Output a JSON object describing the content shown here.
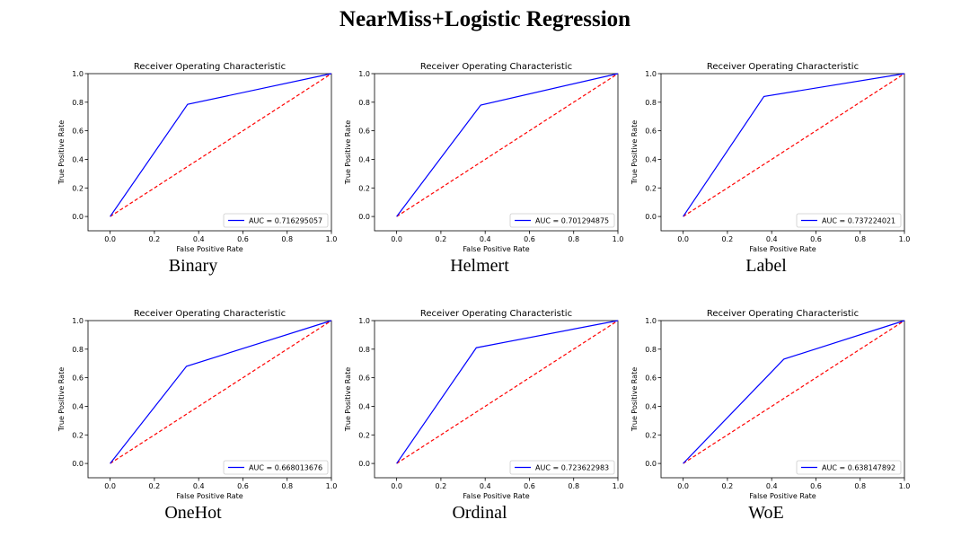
{
  "figure": {
    "title": "NearMiss+Logistic Regression"
  },
  "chart_data": [
    {
      "type": "line",
      "caption": "Binary",
      "title": "Receiver Operating Characteristic",
      "xlabel": "False Positive Rate",
      "ylabel": "True Positive Rate",
      "xlim": [
        -0.1,
        1.0
      ],
      "ylim": [
        -0.1,
        1.0
      ],
      "xticks": [
        "0.0",
        "0.2",
        "0.4",
        "0.6",
        "0.8",
        "1.0"
      ],
      "yticks": [
        "0.0",
        "0.2",
        "0.4",
        "0.6",
        "0.8",
        "1.0"
      ],
      "legend_loc": "lower right",
      "series": [
        {
          "name": "AUC = 0.716295057",
          "color": "#0000ff",
          "style": "solid",
          "x": [
            0.0,
            0.35,
            1.0
          ],
          "y": [
            0.0,
            0.785,
            1.0
          ]
        },
        {
          "color": "#ff0000",
          "style": "dashed",
          "x": [
            0.0,
            1.0
          ],
          "y": [
            0.0,
            1.0
          ]
        }
      ]
    },
    {
      "type": "line",
      "caption": "Helmert",
      "title": "Receiver Operating Characteristic",
      "xlabel": "False Positive Rate",
      "ylabel": "True Positive Rate",
      "xlim": [
        -0.1,
        1.0
      ],
      "ylim": [
        -0.1,
        1.0
      ],
      "xticks": [
        "0.0",
        "0.2",
        "0.4",
        "0.6",
        "0.8",
        "1.0"
      ],
      "yticks": [
        "0.0",
        "0.2",
        "0.4",
        "0.6",
        "0.8",
        "1.0"
      ],
      "legend_loc": "lower right",
      "series": [
        {
          "name": "AUC = 0.701294875",
          "color": "#0000ff",
          "style": "solid",
          "x": [
            0.0,
            0.38,
            1.0
          ],
          "y": [
            0.0,
            0.78,
            1.0
          ]
        },
        {
          "color": "#ff0000",
          "style": "dashed",
          "x": [
            0.0,
            1.0
          ],
          "y": [
            0.0,
            1.0
          ]
        }
      ]
    },
    {
      "type": "line",
      "caption": "Label",
      "title": "Receiver Operating Characteristic",
      "xlabel": "False Positive Rate",
      "ylabel": "True Positive Rate",
      "xlim": [
        -0.1,
        1.0
      ],
      "ylim": [
        -0.1,
        1.0
      ],
      "xticks": [
        "0.0",
        "0.2",
        "0.4",
        "0.6",
        "0.8",
        "1.0"
      ],
      "yticks": [
        "0.0",
        "0.2",
        "0.4",
        "0.6",
        "0.8",
        "1.0"
      ],
      "legend_loc": "lower right",
      "series": [
        {
          "name": "AUC = 0.737224021",
          "color": "#0000ff",
          "style": "solid",
          "x": [
            0.0,
            0.365,
            1.0
          ],
          "y": [
            0.0,
            0.84,
            1.0
          ]
        },
        {
          "color": "#ff0000",
          "style": "dashed",
          "x": [
            0.0,
            1.0
          ],
          "y": [
            0.0,
            1.0
          ]
        }
      ]
    },
    {
      "type": "line",
      "caption": "OneHot",
      "title": "Receiver Operating Characteristic",
      "xlabel": "False Positive Rate",
      "ylabel": "True Positive Rate",
      "xlim": [
        -0.1,
        1.0
      ],
      "ylim": [
        -0.1,
        1.0
      ],
      "xticks": [
        "0.0",
        "0.2",
        "0.4",
        "0.6",
        "0.8",
        "1.0"
      ],
      "yticks": [
        "0.0",
        "0.2",
        "0.4",
        "0.6",
        "0.8",
        "1.0"
      ],
      "legend_loc": "lower right",
      "series": [
        {
          "name": "AUC = 0.668013676",
          "color": "#0000ff",
          "style": "solid",
          "x": [
            0.0,
            0.345,
            1.0
          ],
          "y": [
            0.0,
            0.68,
            1.0
          ]
        },
        {
          "color": "#ff0000",
          "style": "dashed",
          "x": [
            0.0,
            1.0
          ],
          "y": [
            0.0,
            1.0
          ]
        }
      ]
    },
    {
      "type": "line",
      "caption": "Ordinal",
      "title": "Receiver Operating Characteristic",
      "xlabel": "False Positive Rate",
      "ylabel": "True Positive Rate",
      "xlim": [
        -0.1,
        1.0
      ],
      "ylim": [
        -0.1,
        1.0
      ],
      "xticks": [
        "0.0",
        "0.2",
        "0.4",
        "0.6",
        "0.8",
        "1.0"
      ],
      "yticks": [
        "0.0",
        "0.2",
        "0.4",
        "0.6",
        "0.8",
        "1.0"
      ],
      "legend_loc": "lower right",
      "series": [
        {
          "name": "AUC = 0.723622983",
          "color": "#0000ff",
          "style": "solid",
          "x": [
            0.0,
            0.36,
            1.0
          ],
          "y": [
            0.0,
            0.81,
            1.0
          ]
        },
        {
          "color": "#ff0000",
          "style": "dashed",
          "x": [
            0.0,
            1.0
          ],
          "y": [
            0.0,
            1.0
          ]
        }
      ]
    },
    {
      "type": "line",
      "caption": "WoE",
      "title": "Receiver Operating Characteristic",
      "xlabel": "False Positive Rate",
      "ylabel": "True Positive Rate",
      "xlim": [
        -0.1,
        1.0
      ],
      "ylim": [
        -0.1,
        1.0
      ],
      "xticks": [
        "0.0",
        "0.2",
        "0.4",
        "0.6",
        "0.8",
        "1.0"
      ],
      "yticks": [
        "0.0",
        "0.2",
        "0.4",
        "0.6",
        "0.8",
        "1.0"
      ],
      "legend_loc": "lower right",
      "series": [
        {
          "name": "AUC = 0.638147892",
          "color": "#0000ff",
          "style": "solid",
          "x": [
            0.0,
            0.455,
            1.0
          ],
          "y": [
            0.0,
            0.73,
            1.0
          ]
        },
        {
          "color": "#ff0000",
          "style": "dashed",
          "x": [
            0.0,
            1.0
          ],
          "y": [
            0.0,
            1.0
          ]
        }
      ]
    }
  ]
}
